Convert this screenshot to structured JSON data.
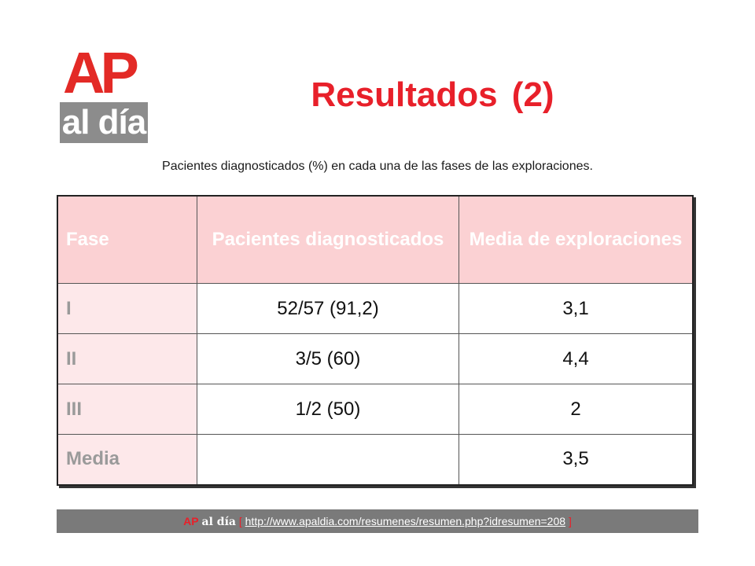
{
  "logo": {
    "top_text": "AP",
    "bottom_text": "al día"
  },
  "title": "Resultados (2)",
  "subtitle": "Pacientes diagnosticados (%) en cada una de las fases de las exploraciones.",
  "table": {
    "headers": [
      "Fase",
      "Pacientes diagnosticados",
      "Media de exploraciones"
    ],
    "rows": [
      [
        "I",
        "52/57 (91,2)",
        "3,1"
      ],
      [
        "II",
        "3/5 (60)",
        "4,4"
      ],
      [
        "III",
        "1/2 (50)",
        "2"
      ],
      [
        "Media",
        "",
        "3,5"
      ]
    ]
  },
  "footer": {
    "brand_ap": "AP",
    "brand_rest": "al día",
    "bracket_open": "[",
    "url": "http://www.apaldia.com/resumenes/resumen.php?idresumen=208",
    "bracket_close": "]"
  },
  "colors": {
    "title": "#e8202a",
    "header_bg": "#fbd1d3",
    "first_col_bg": "#fde8ea",
    "footer_bg": "#7a7a7a"
  }
}
